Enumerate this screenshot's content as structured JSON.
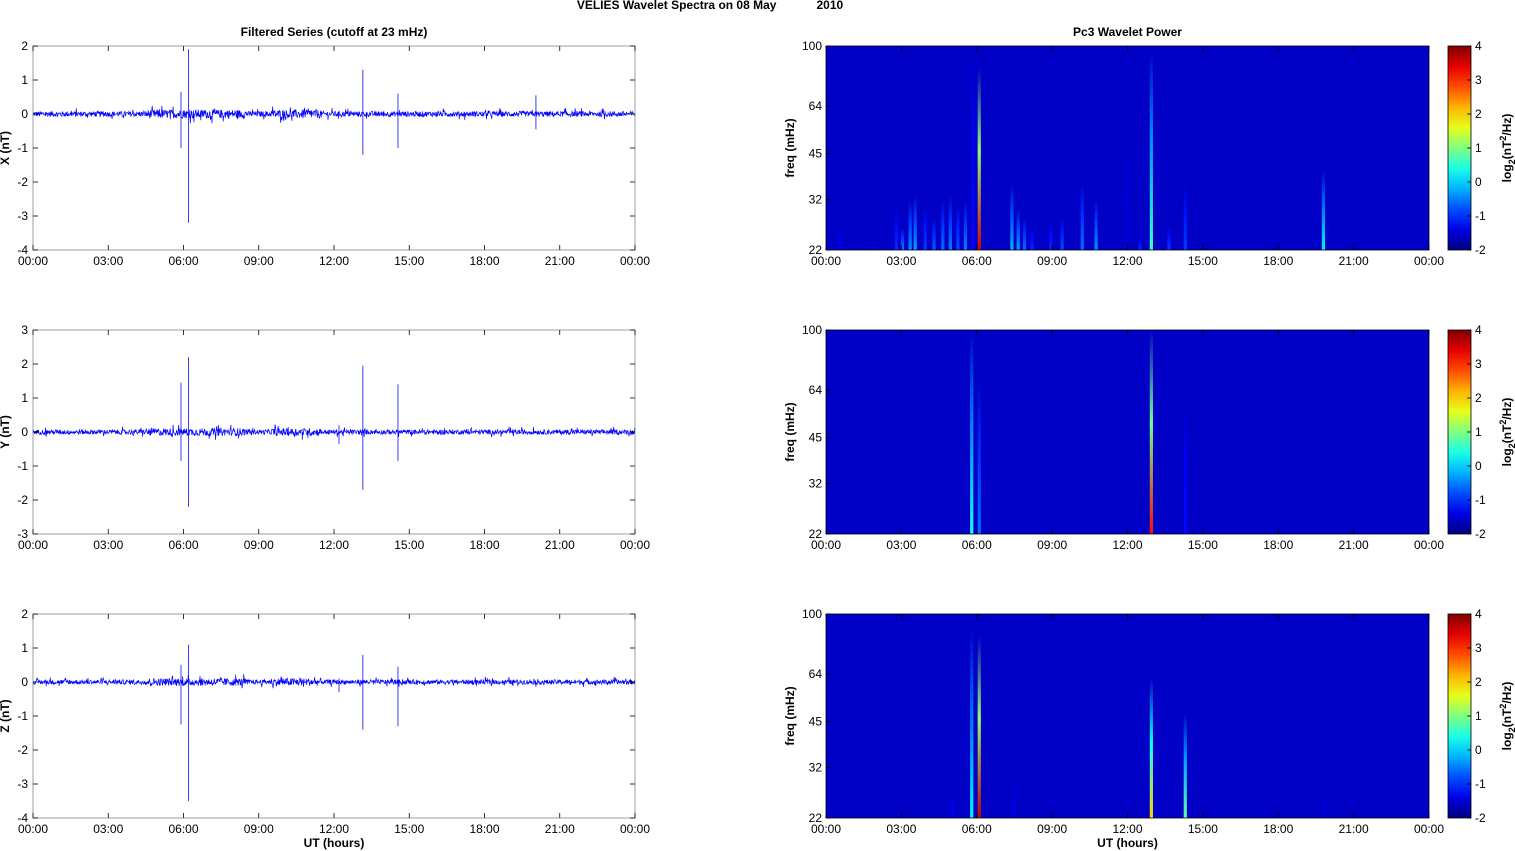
{
  "figure": {
    "title_left": "VELIES Wavelet Spectra on 08 May",
    "title_right": "2010"
  },
  "chart_data": [
    {
      "type": "line",
      "title": "Filtered Series (cutoff at 23 mHz)",
      "xlabel": "",
      "ylabel": "X (nT)",
      "xlim": [
        0,
        24
      ],
      "ylim": [
        -4,
        2
      ],
      "xticks": [
        "00:00",
        "03:00",
        "06:00",
        "09:00",
        "12:00",
        "15:00",
        "18:00",
        "21:00",
        "00:00"
      ],
      "yticks": [
        "2",
        "1",
        "0",
        "-1",
        "-2",
        "-3",
        "-4"
      ],
      "noise_amplitude": 0.08,
      "color": "#0000ff",
      "spikes": [
        {
          "t": 5.9,
          "hi": 0.65,
          "lo": -1.0
        },
        {
          "t": 6.2,
          "hi": 1.9,
          "lo": -3.2
        },
        {
          "t": 13.15,
          "hi": 1.3,
          "lo": -1.2
        },
        {
          "t": 14.55,
          "hi": 0.6,
          "lo": -1.0
        },
        {
          "t": 20.05,
          "hi": 0.55,
          "lo": -0.45
        }
      ]
    },
    {
      "type": "line",
      "title": "",
      "xlabel": "",
      "ylabel": "Y (nT)",
      "xlim": [
        0,
        24
      ],
      "ylim": [
        -3,
        3
      ],
      "xticks": [
        "00:00",
        "03:00",
        "06:00",
        "09:00",
        "12:00",
        "15:00",
        "18:00",
        "21:00",
        "00:00"
      ],
      "yticks": [
        "3",
        "2",
        "1",
        "0",
        "-1",
        "-2",
        "-3"
      ],
      "noise_amplitude": 0.07,
      "color": "#0000ff",
      "spikes": [
        {
          "t": 5.9,
          "hi": 1.45,
          "lo": -0.85
        },
        {
          "t": 6.2,
          "hi": 2.2,
          "lo": -2.2
        },
        {
          "t": 12.2,
          "hi": 0.2,
          "lo": -0.35
        },
        {
          "t": 13.15,
          "hi": 1.95,
          "lo": -1.7
        },
        {
          "t": 14.55,
          "hi": 1.4,
          "lo": -0.85
        }
      ]
    },
    {
      "type": "line",
      "title": "",
      "xlabel": "UT (hours)",
      "ylabel": "Z (nT)",
      "xlim": [
        0,
        24
      ],
      "ylim": [
        -4,
        2
      ],
      "xticks": [
        "00:00",
        "03:00",
        "06:00",
        "09:00",
        "12:00",
        "15:00",
        "18:00",
        "21:00",
        "00:00"
      ],
      "yticks": [
        "2",
        "1",
        "0",
        "-1",
        "-2",
        "-3",
        "-4"
      ],
      "noise_amplitude": 0.07,
      "color": "#0000ff",
      "spikes": [
        {
          "t": 5.9,
          "hi": 0.5,
          "lo": -1.25
        },
        {
          "t": 6.2,
          "hi": 1.1,
          "lo": -3.5
        },
        {
          "t": 12.2,
          "hi": 0.1,
          "lo": -0.3
        },
        {
          "t": 13.15,
          "hi": 0.8,
          "lo": -1.4
        },
        {
          "t": 14.55,
          "hi": 0.45,
          "lo": -1.3
        }
      ]
    },
    {
      "type": "heatmap",
      "title": "Pc3 Wavelet Power",
      "xlabel": "",
      "ylabel": "freq (mHz)",
      "xlim": [
        0,
        24
      ],
      "ylim_mhz": [
        22,
        100
      ],
      "yscale": "log",
      "xticks": [
        "00:00",
        "03:00",
        "06:00",
        "09:00",
        "12:00",
        "15:00",
        "18:00",
        "21:00",
        "00:00"
      ],
      "yticks": [
        "100",
        "64",
        "45",
        "32",
        "22"
      ],
      "colorbar": {
        "min": -2,
        "max": 4,
        "ticks": [
          "4",
          "3",
          "2",
          "1",
          "0",
          "-1",
          "-2"
        ],
        "label": "log",
        "label_sub": "2",
        "label_tail": "(nT",
        "label_sup": "2",
        "label_end": "/Hz)"
      },
      "background_level": -2,
      "streaks": [
        {
          "t": 0.55,
          "top": 26,
          "level": -1.4
        },
        {
          "t": 1.9,
          "top": 24,
          "level": -1.5
        },
        {
          "t": 2.8,
          "top": 30,
          "level": -1.0
        },
        {
          "t": 3.05,
          "top": 26,
          "level": -0.5
        },
        {
          "t": 3.35,
          "top": 32,
          "level": -0.4
        },
        {
          "t": 3.55,
          "top": 33,
          "level": -0.3
        },
        {
          "t": 3.95,
          "top": 30,
          "level": -0.9
        },
        {
          "t": 4.3,
          "top": 28,
          "level": -0.7
        },
        {
          "t": 4.65,
          "top": 32,
          "level": -0.6
        },
        {
          "t": 4.95,
          "top": 33,
          "level": -0.5
        },
        {
          "t": 5.25,
          "top": 31,
          "level": -0.8
        },
        {
          "t": 5.55,
          "top": 32,
          "level": -0.5
        },
        {
          "t": 5.85,
          "top": 100,
          "level": -1.2
        },
        {
          "t": 6.1,
          "top": 85,
          "level": 3.5
        },
        {
          "t": 7.4,
          "top": 36,
          "level": -0.2
        },
        {
          "t": 7.65,
          "top": 30,
          "level": -0.3
        },
        {
          "t": 7.9,
          "top": 28,
          "level": -0.6
        },
        {
          "t": 8.2,
          "top": 26,
          "level": -1.0
        },
        {
          "t": 8.95,
          "top": 27,
          "level": -1.0
        },
        {
          "t": 9.4,
          "top": 28,
          "level": -0.8
        },
        {
          "t": 10.2,
          "top": 36,
          "level": -0.6
        },
        {
          "t": 10.75,
          "top": 32,
          "level": -0.4
        },
        {
          "t": 11.95,
          "top": 50,
          "level": -1.5
        },
        {
          "t": 12.5,
          "top": 24,
          "level": -1.0
        },
        {
          "t": 12.95,
          "top": 96,
          "level": 0.6
        },
        {
          "t": 13.65,
          "top": 26,
          "level": -0.9
        },
        {
          "t": 14.3,
          "top": 36,
          "level": -0.9
        },
        {
          "t": 19.8,
          "top": 40,
          "level": 0.2
        }
      ]
    },
    {
      "type": "heatmap",
      "title": "",
      "xlabel": "",
      "ylabel": "freq (mHz)",
      "xlim": [
        0,
        24
      ],
      "ylim_mhz": [
        22,
        100
      ],
      "yscale": "log",
      "xticks": [
        "00:00",
        "03:00",
        "06:00",
        "09:00",
        "12:00",
        "15:00",
        "18:00",
        "21:00",
        "00:00"
      ],
      "yticks": [
        "100",
        "64",
        "45",
        "32",
        "22"
      ],
      "colorbar": {
        "min": -2,
        "max": 4,
        "ticks": [
          "4",
          "3",
          "2",
          "1",
          "0",
          "-1",
          "-2"
        ],
        "label": "log",
        "label_sub": "2",
        "label_tail": "(nT",
        "label_sup": "2",
        "label_end": "/Hz)"
      },
      "background_level": -2,
      "streaks": [
        {
          "t": 5.8,
          "top": 100,
          "level": 0.4
        },
        {
          "t": 6.1,
          "top": 70,
          "level": -0.6
        },
        {
          "t": 8.8,
          "top": 24,
          "level": -1.6
        },
        {
          "t": 12.0,
          "top": 30,
          "level": -1.6
        },
        {
          "t": 12.95,
          "top": 100,
          "level": 3.2
        },
        {
          "t": 14.3,
          "top": 60,
          "level": -1.2
        }
      ]
    },
    {
      "type": "heatmap",
      "title": "",
      "xlabel": "UT (hours)",
      "ylabel": "freq (mHz)",
      "xlim": [
        0,
        24
      ],
      "ylim_mhz": [
        22,
        100
      ],
      "yscale": "log",
      "xticks": [
        "00:00",
        "03:00",
        "06:00",
        "09:00",
        "12:00",
        "15:00",
        "18:00",
        "21:00",
        "00:00"
      ],
      "yticks": [
        "100",
        "64",
        "45",
        "32",
        "22"
      ],
      "colorbar": {
        "min": -2,
        "max": 4,
        "ticks": [
          "4",
          "3",
          "2",
          "1",
          "0",
          "-1",
          "-2"
        ],
        "label": "log",
        "label_sub": "2",
        "label_tail": "(nT",
        "label_sup": "2",
        "label_end": "/Hz)"
      },
      "background_level": -2,
      "streaks": [
        {
          "t": 5.05,
          "top": 26,
          "level": -1.3
        },
        {
          "t": 5.8,
          "top": 90,
          "level": 0.2
        },
        {
          "t": 6.1,
          "top": 85,
          "level": 3.6
        },
        {
          "t": 7.5,
          "top": 28,
          "level": -1.4
        },
        {
          "t": 12.95,
          "top": 62,
          "level": 2.0
        },
        {
          "t": 14.3,
          "top": 48,
          "level": 0.8
        },
        {
          "t": 19.8,
          "top": 26,
          "level": -1.5
        }
      ]
    }
  ]
}
